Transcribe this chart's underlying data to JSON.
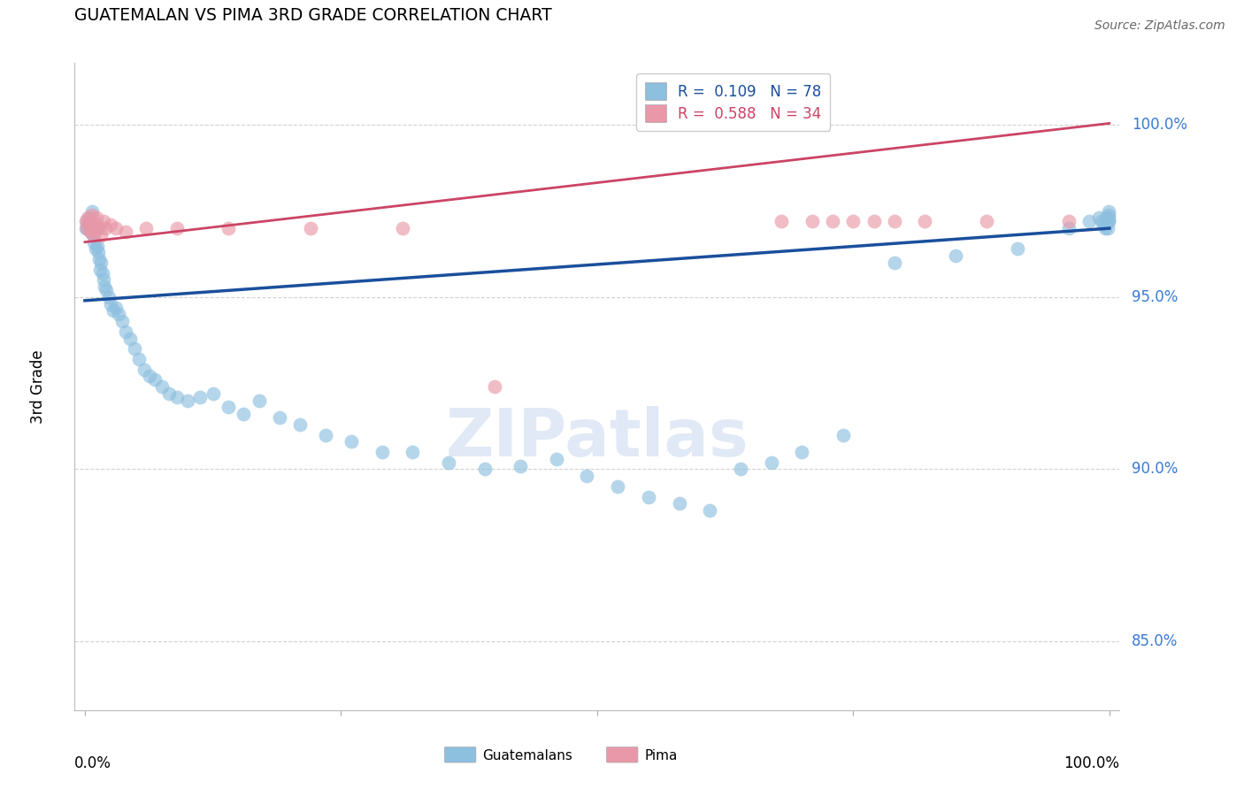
{
  "title": "GUATEMALAN VS PIMA 3RD GRADE CORRELATION CHART",
  "source": "Source: ZipAtlas.com",
  "ylabel": "3rd Grade",
  "legend_blue_label": "R =  0.109   N = 78",
  "legend_pink_label": "R =  0.588   N = 34",
  "blue_color": "#8dbfdf",
  "pink_color": "#e898a8",
  "blue_line_color": "#1a4f9c",
  "pink_line_color": "#cc4466",
  "blue_trend_y0": 0.949,
  "blue_trend_y1": 0.97,
  "pink_trend_y0": 0.966,
  "pink_trend_y1": 1.0005,
  "xlim": [
    -0.01,
    1.01
  ],
  "ylim": [
    0.83,
    1.018
  ],
  "yticks": [
    1.0,
    0.95,
    0.9,
    0.85
  ],
  "background_color": "#ffffff",
  "grid_color": "#cccccc",
  "blue_x": [
    0.001,
    0.002,
    0.003,
    0.004,
    0.005,
    0.006,
    0.007,
    0.008,
    0.009,
    0.01,
    0.011,
    0.012,
    0.013,
    0.014,
    0.015,
    0.016,
    0.017,
    0.018,
    0.019,
    0.021,
    0.023,
    0.025,
    0.028,
    0.03,
    0.033,
    0.036,
    0.04,
    0.044,
    0.048,
    0.053,
    0.058,
    0.063,
    0.068,
    0.075,
    0.082,
    0.09,
    0.1,
    0.112,
    0.125,
    0.14,
    0.155,
    0.17,
    0.19,
    0.21,
    0.235,
    0.26,
    0.29,
    0.32,
    0.355,
    0.39,
    0.425,
    0.46,
    0.49,
    0.52,
    0.55,
    0.58,
    0.61,
    0.64,
    0.67,
    0.7,
    0.74,
    0.79,
    0.85,
    0.91,
    0.96,
    0.98,
    0.99,
    0.992,
    0.994,
    0.996,
    0.997,
    0.998,
    0.999,
    0.999,
    0.999,
    0.999,
    0.999
  ],
  "blue_y": [
    0.97,
    0.972,
    0.97,
    0.973,
    0.971,
    0.969,
    0.975,
    0.968,
    0.966,
    0.964,
    0.97,
    0.965,
    0.963,
    0.961,
    0.958,
    0.96,
    0.957,
    0.955,
    0.953,
    0.952,
    0.95,
    0.948,
    0.946,
    0.947,
    0.945,
    0.943,
    0.94,
    0.938,
    0.935,
    0.932,
    0.929,
    0.927,
    0.926,
    0.924,
    0.922,
    0.921,
    0.92,
    0.921,
    0.922,
    0.918,
    0.916,
    0.92,
    0.915,
    0.913,
    0.91,
    0.908,
    0.905,
    0.905,
    0.902,
    0.9,
    0.901,
    0.903,
    0.898,
    0.895,
    0.892,
    0.89,
    0.888,
    0.9,
    0.902,
    0.905,
    0.91,
    0.96,
    0.962,
    0.964,
    0.97,
    0.972,
    0.973,
    0.972,
    0.971,
    0.97,
    0.973,
    0.97,
    0.972,
    0.973,
    0.974,
    0.972,
    0.975
  ],
  "pink_x": [
    0.001,
    0.002,
    0.003,
    0.004,
    0.005,
    0.006,
    0.007,
    0.008,
    0.009,
    0.01,
    0.011,
    0.012,
    0.014,
    0.016,
    0.018,
    0.02,
    0.025,
    0.03,
    0.04,
    0.06,
    0.09,
    0.14,
    0.22,
    0.31,
    0.4,
    0.68,
    0.71,
    0.73,
    0.75,
    0.77,
    0.79,
    0.82,
    0.88,
    0.96
  ],
  "pink_y": [
    0.972,
    0.97,
    0.973,
    0.971,
    0.969,
    0.972,
    0.974,
    0.97,
    0.968,
    0.97,
    0.973,
    0.971,
    0.97,
    0.968,
    0.972,
    0.97,
    0.971,
    0.97,
    0.969,
    0.97,
    0.97,
    0.97,
    0.97,
    0.97,
    0.924,
    0.972,
    0.972,
    0.972,
    0.972,
    0.972,
    0.972,
    0.972,
    0.972,
    0.972
  ]
}
